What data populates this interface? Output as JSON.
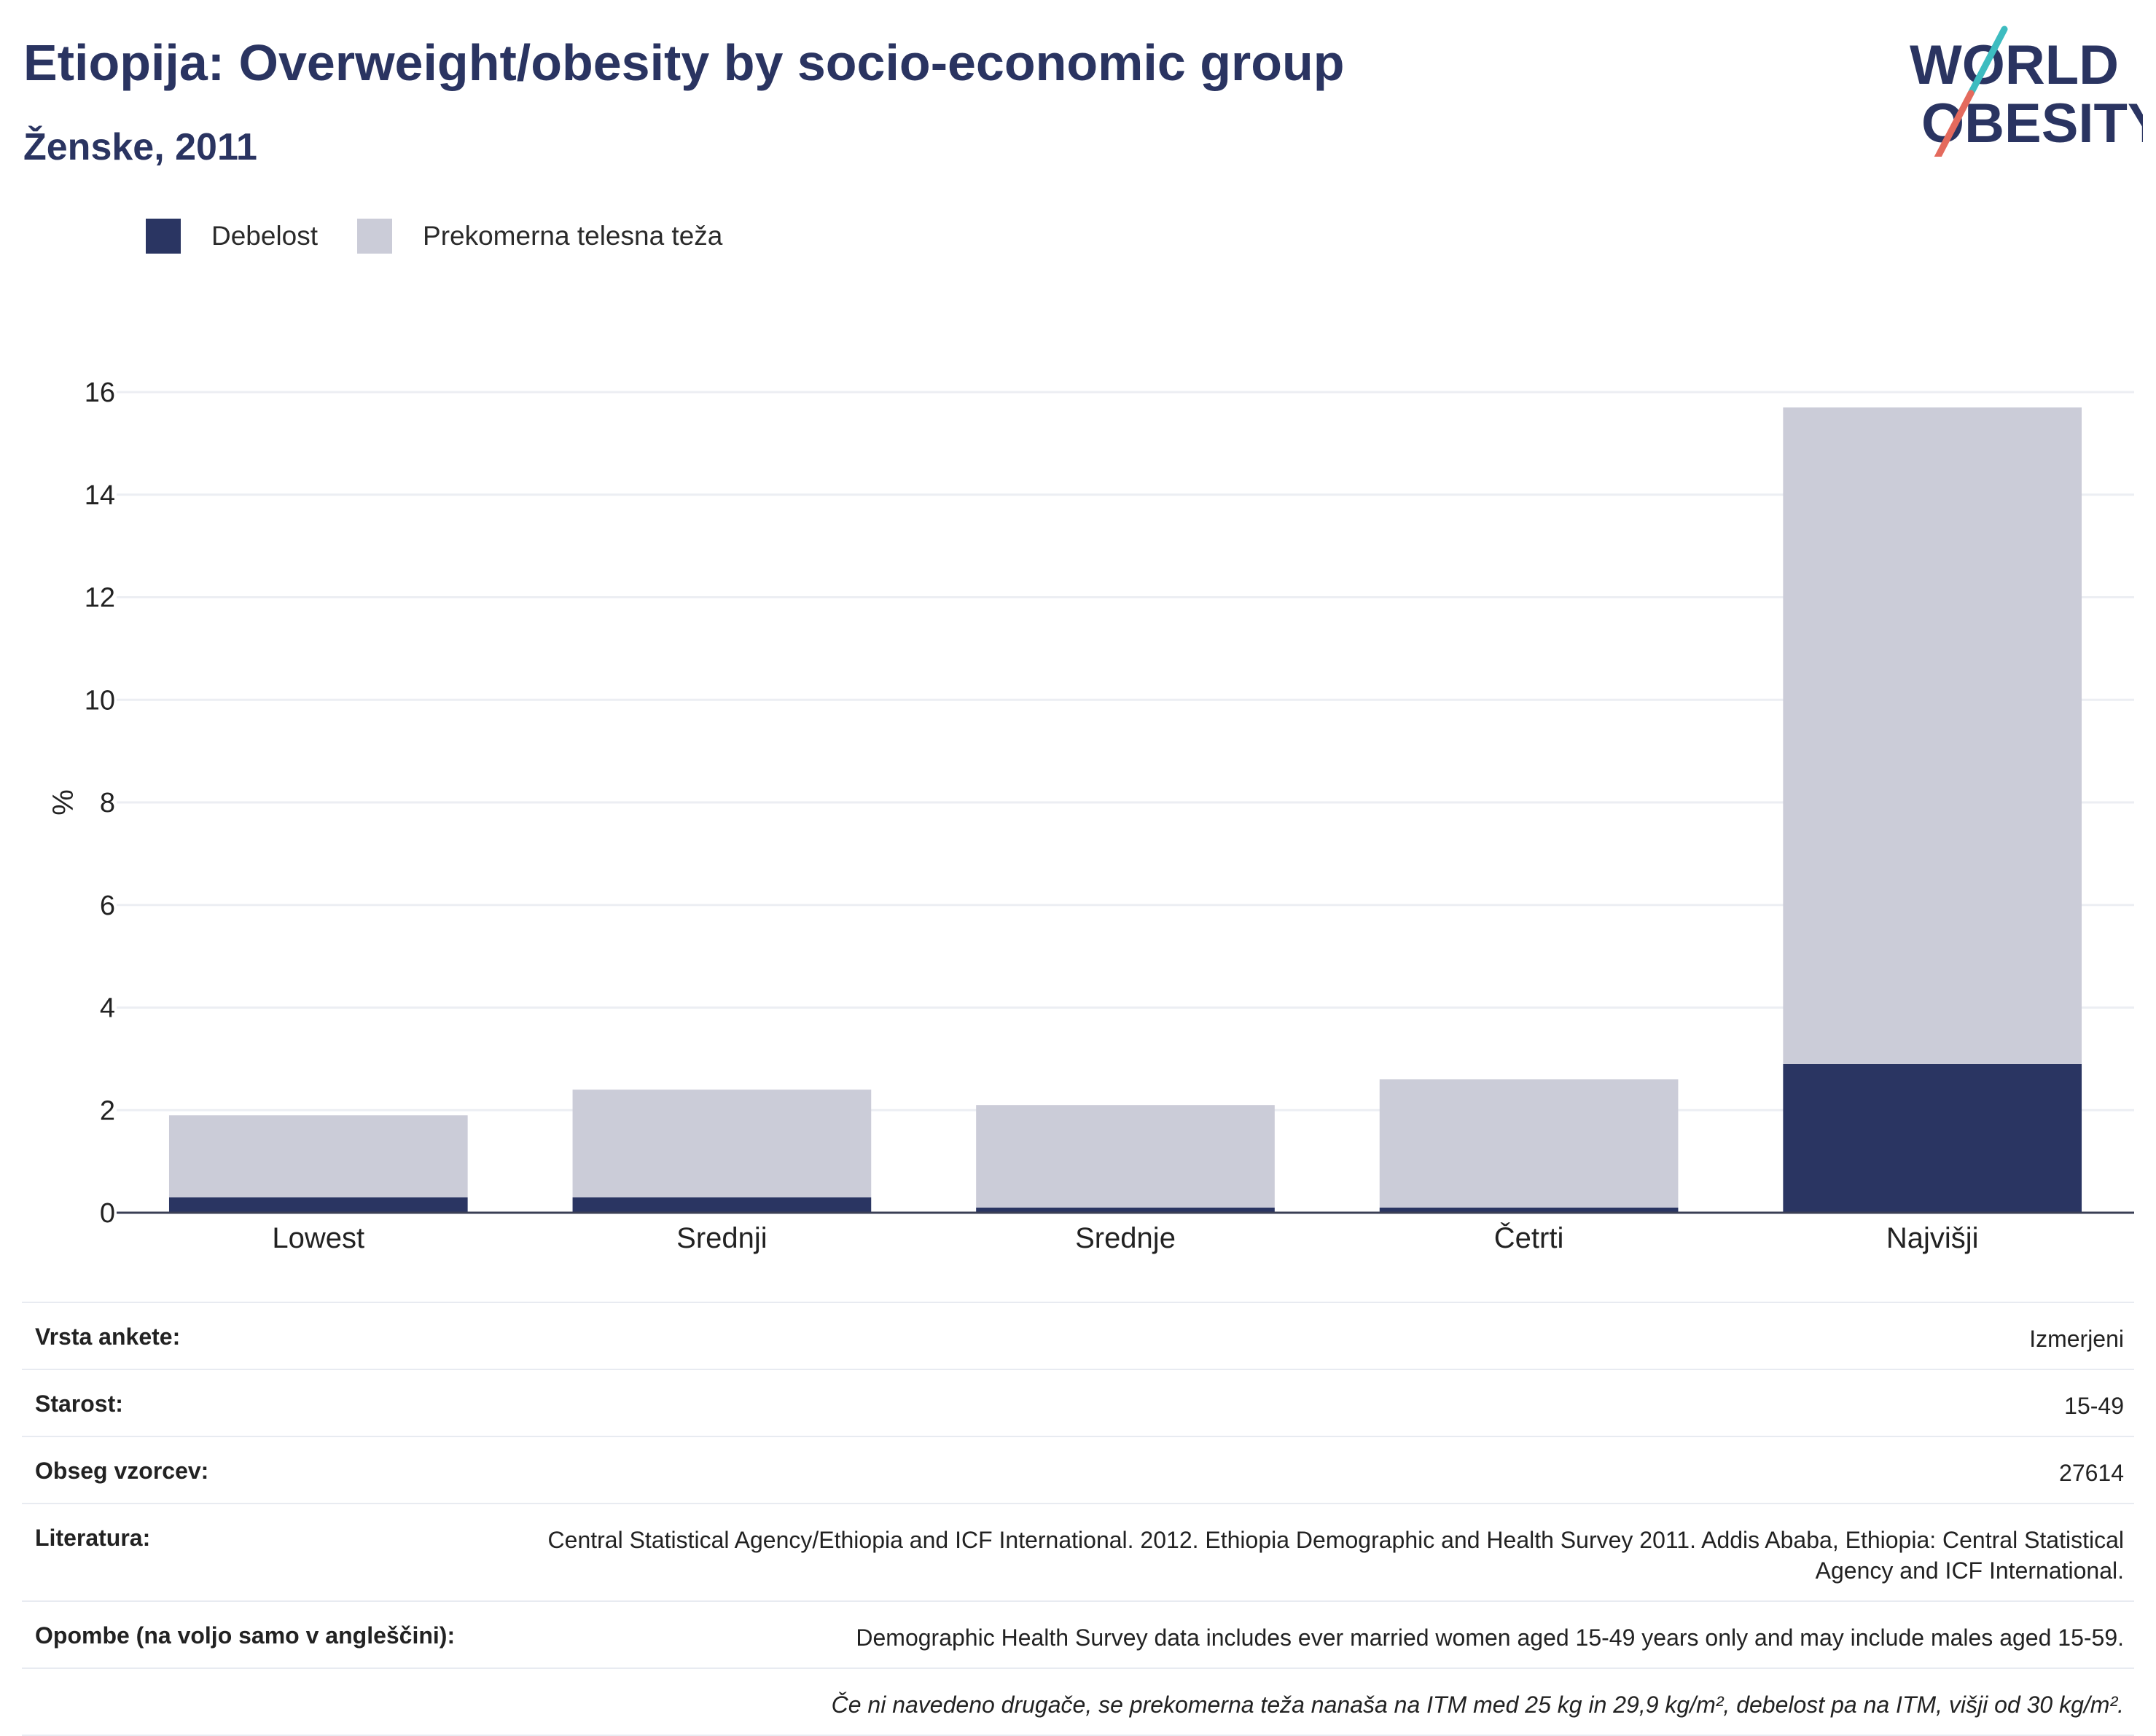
{
  "header": {
    "title": "Etiopija: Overweight/obesity by socio-economic group",
    "subtitle": "Ženske, 2011"
  },
  "logo": {
    "line1": "WORLD",
    "line2": "OBESITY"
  },
  "colors": {
    "obesity": "#2a3562",
    "overweight": "#cbccd8",
    "text": "#2a3461",
    "grid": "#eceef3"
  },
  "chart_data": {
    "type": "bar",
    "stacked": true,
    "categories": [
      "Lowest",
      "Srednji",
      "Srednje",
      "Četrti",
      "Najvišji"
    ],
    "series": [
      {
        "name": "Debelost",
        "values": [
          0.3,
          0.3,
          0.1,
          0.1,
          2.9
        ]
      },
      {
        "name": "Prekomerna telesna teža",
        "values": [
          1.6,
          2.1,
          2.0,
          2.5,
          12.8
        ]
      }
    ],
    "ylabel": "%",
    "ylim": [
      0,
      16
    ],
    "yticks": [
      0,
      2,
      4,
      6,
      8,
      10,
      12,
      14,
      16
    ],
    "grid": true,
    "legend_position": "top-left"
  },
  "meta": {
    "rows": [
      {
        "key": "Vrsta ankete:",
        "value": "Izmerjeni"
      },
      {
        "key": "Starost:",
        "value": "15-49"
      },
      {
        "key": "Obseg vzorcev:",
        "value": "27614"
      },
      {
        "key": "Literatura:",
        "value": "Central Statistical Agency/Ethiopia and ICF International. 2012. Ethiopia Demographic and Health Survey 2011. Addis Ababa, Ethiopia: Central Statistical Agency and ICF International."
      },
      {
        "key": "Opombe (na voljo samo v angleščini):",
        "value": "Demographic Health Survey data includes ever married women aged 15-49 years only and may include males aged 15-59."
      }
    ],
    "footnote": "Če ni navedeno drugače, se prekomerna teža nanaša na ITM med 25 kg in 29,9 kg/m², debelost pa na ITM, višji od 30 kg/m²."
  }
}
